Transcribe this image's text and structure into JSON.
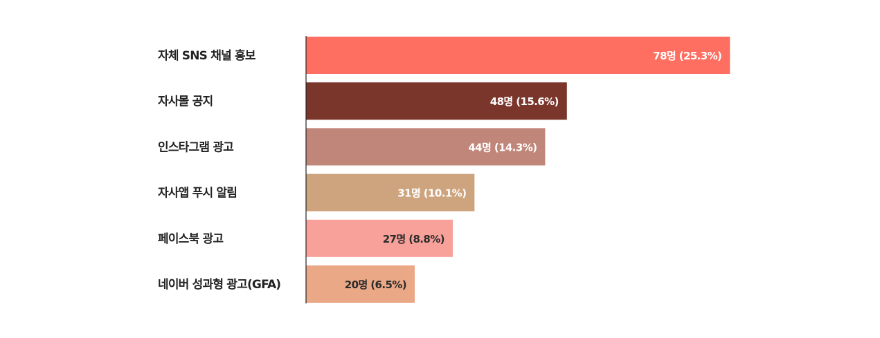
{
  "chart_data": {
    "type": "bar",
    "orientation": "horizontal",
    "categories": [
      "자체 SNS 채널 홍보",
      "자사몰 공지",
      "인스타그램 광고",
      "자사앱 푸시 알림",
      "페이스북 광고",
      "네이버 성과형 광고(GFA)"
    ],
    "values": [
      78,
      48,
      44,
      31,
      27,
      20
    ],
    "data_labels": [
      "78명 (25.3%)",
      "48명 (15.6%)",
      "44명 (14.3%)",
      "31명 (10.1%)",
      "27명 (8.8%)",
      "20명 (6.5%)"
    ],
    "colors": [
      "#FF6F61",
      "#7B362C",
      "#C0867A",
      "#CDA47D",
      "#F8A19A",
      "#EAA887"
    ],
    "label_colors": [
      "#ffffff",
      "#ffffff",
      "#ffffff",
      "#ffffff",
      "#2a2a2a",
      "#2a2a2a"
    ],
    "grid": false,
    "legend": "none"
  }
}
